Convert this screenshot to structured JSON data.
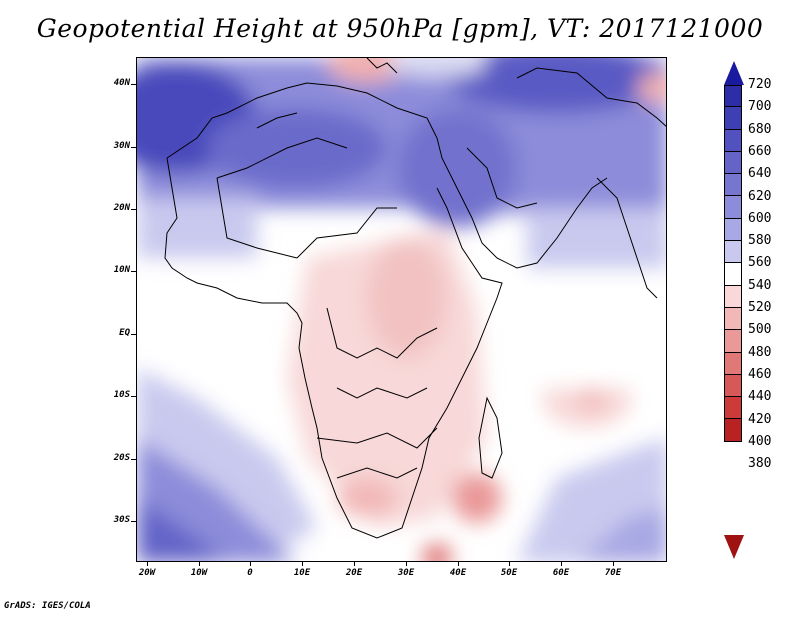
{
  "title": "Geopotential Height at 950hPa [gpm], VT: 2017121000",
  "credit": "GrADS: IGES/COLA",
  "map": {
    "lat_labels": [
      "40N",
      "30N",
      "20N",
      "10N",
      "EQ",
      "10S",
      "20S",
      "30S"
    ],
    "lon_labels": [
      "20W",
      "10W",
      "0",
      "10E",
      "20E",
      "30E",
      "40E",
      "50E",
      "60E",
      "70E"
    ]
  },
  "colorbar": {
    "levels": [
      "720",
      "700",
      "680",
      "660",
      "640",
      "620",
      "600",
      "580",
      "560",
      "540",
      "520",
      "500",
      "480",
      "460",
      "440",
      "420",
      "400",
      "380"
    ],
    "colors": [
      "#1a1a9e",
      "#2d2da8",
      "#3f3fb4",
      "#5151c0",
      "#6363c8",
      "#7676d0",
      "#8c8cda",
      "#a8a8e4",
      "#c9c9ef",
      "#ffffff",
      "#f8d8d8",
      "#f2b8b8",
      "#ea9898",
      "#e07878",
      "#d65858",
      "#cc3a3a",
      "#b82222",
      "#9e1212"
    ]
  }
}
